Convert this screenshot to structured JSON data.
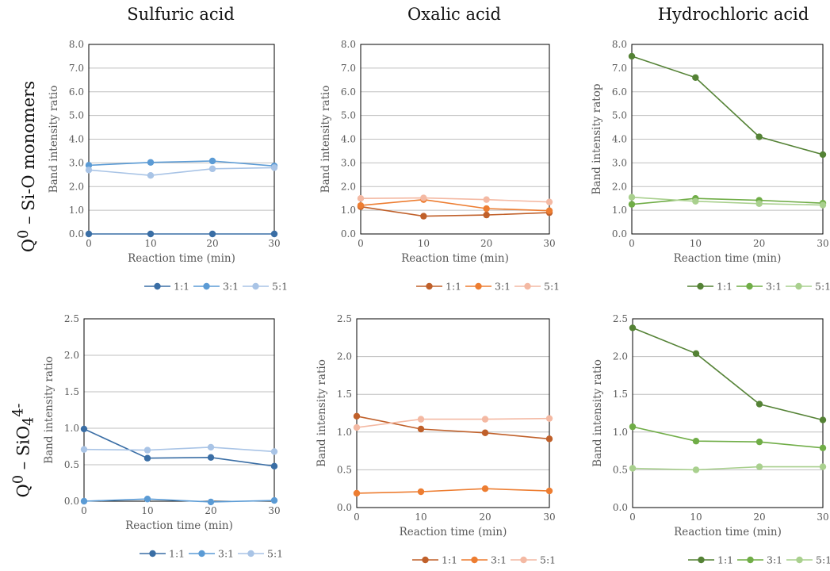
{
  "column_titles": [
    "Sulfuric acid",
    "Oxalic acid",
    "Hydrochloric acid"
  ],
  "row_labels": [
    {
      "main": "Q",
      "sup": "0",
      "rest": " – Si-O monomers"
    },
    {
      "main": "Q",
      "sup": "0",
      "rest": " – SiO",
      "sub": "4",
      "sup2": "4-"
    }
  ],
  "colors": {
    "sulfuric": [
      "#3a6ea5",
      "#5b9bd5",
      "#a9c4e6"
    ],
    "oxalic": [
      "#c0602a",
      "#ed7d31",
      "#f4b9a3"
    ],
    "hydrochloric": [
      "#548235",
      "#70ad47",
      "#a9d08e"
    ]
  },
  "chart_data": [
    {
      "type": "line",
      "xlabel": "Reaction time (min)",
      "ylabel": "Band intensity ratio",
      "x": [
        0,
        10,
        20,
        30
      ],
      "xticks": [
        "0",
        "10",
        "20",
        "30"
      ],
      "ylim": [
        0,
        8
      ],
      "yticks": [
        "0.0",
        "1.0",
        "2.0",
        "3.0",
        "4.0",
        "5.0",
        "6.0",
        "7.0",
        "8.0"
      ],
      "grid": true,
      "legend": "bottom",
      "series": [
        {
          "name": "1:1",
          "values": [
            0.0,
            0.0,
            0.0,
            0.0
          ]
        },
        {
          "name": "3:1",
          "values": [
            2.9,
            3.02,
            3.08,
            2.87
          ]
        },
        {
          "name": "5:1",
          "values": [
            2.7,
            2.47,
            2.75,
            2.8
          ]
        }
      ]
    },
    {
      "type": "line",
      "xlabel": "Reaction time (min)",
      "ylabel": "Band intensity ratio",
      "x": [
        0,
        10,
        20,
        30
      ],
      "xticks": [
        "0",
        "10",
        "20",
        "30"
      ],
      "ylim": [
        0,
        8
      ],
      "yticks": [
        "0.0",
        "1.0",
        "2.0",
        "3.0",
        "4.0",
        "5.0",
        "6.0",
        "7.0",
        "8.0"
      ],
      "grid": true,
      "legend": "bottom",
      "series": [
        {
          "name": "1:1",
          "values": [
            1.15,
            0.75,
            0.8,
            0.9
          ]
        },
        {
          "name": "3:1",
          "values": [
            1.2,
            1.45,
            1.07,
            0.98
          ]
        },
        {
          "name": "5:1",
          "values": [
            1.5,
            1.52,
            1.45,
            1.35
          ]
        }
      ]
    },
    {
      "type": "line",
      "xlabel": "Reaction time (min)",
      "ylabel": "Band intensity ratop",
      "x": [
        0,
        10,
        20,
        30
      ],
      "xticks": [
        "0",
        "10",
        "20",
        "30"
      ],
      "ylim": [
        0,
        8
      ],
      "yticks": [
        "0.0",
        "1.0",
        "2.0",
        "3.0",
        "4.0",
        "5.0",
        "6.0",
        "7.0",
        "8.0"
      ],
      "grid": true,
      "legend": "bottom",
      "series": [
        {
          "name": "1:1",
          "values": [
            7.5,
            6.6,
            4.1,
            3.35
          ]
        },
        {
          "name": "3:1",
          "values": [
            1.25,
            1.5,
            1.42,
            1.3
          ]
        },
        {
          "name": "5:1",
          "values": [
            1.55,
            1.38,
            1.28,
            1.22
          ]
        }
      ]
    },
    {
      "type": "line",
      "xlabel": "Reaction time (min)",
      "ylabel": "Band intensity ratio",
      "x": [
        0,
        10,
        20,
        30
      ],
      "xticks": [
        "0",
        "10",
        "20",
        "30"
      ],
      "ylim": [
        0,
        2.5
      ],
      "yticks": [
        "0.0",
        "0.5",
        "1.0",
        "1.5",
        "2.0",
        "2.5"
      ],
      "grid": true,
      "legend": "bottom",
      "series": [
        {
          "name": "1:1",
          "values": [
            0.99,
            0.59,
            0.6,
            0.48
          ]
        },
        {
          "name": "3:1",
          "values": [
            0.0,
            0.03,
            -0.01,
            0.01
          ]
        },
        {
          "name": "5:1",
          "values": [
            0.71,
            0.7,
            0.74,
            0.68
          ]
        }
      ]
    },
    {
      "type": "line",
      "xlabel": "Reaction time (min)",
      "ylabel": "Band intensity ratio",
      "x": [
        0,
        10,
        20,
        30
      ],
      "xticks": [
        "0",
        "10",
        "20",
        "30"
      ],
      "ylim": [
        0,
        2.5
      ],
      "yticks": [
        "0.0",
        "0.5",
        "1.0",
        "1.5",
        "2.0",
        "2.5"
      ],
      "grid": true,
      "legend": "bottom",
      "series": [
        {
          "name": "1:1",
          "values": [
            1.21,
            1.04,
            0.99,
            0.91
          ]
        },
        {
          "name": "3:1",
          "values": [
            0.19,
            0.21,
            0.25,
            0.22
          ]
        },
        {
          "name": "5:1",
          "values": [
            1.06,
            1.17,
            1.17,
            1.18
          ]
        }
      ]
    },
    {
      "type": "line",
      "xlabel": "Reaction time (min)",
      "ylabel": "Band intensity ratio",
      "x": [
        0,
        10,
        20,
        30
      ],
      "xticks": [
        "0",
        "10",
        "20",
        "30"
      ],
      "ylim": [
        0,
        2.5
      ],
      "yticks": [
        "0.0",
        "0.5",
        "1.0",
        "1.5",
        "2.0",
        "2.5"
      ],
      "grid": true,
      "legend": "bottom",
      "series": [
        {
          "name": "1:1",
          "values": [
            2.38,
            2.04,
            1.37,
            1.16
          ]
        },
        {
          "name": "3:1",
          "values": [
            1.07,
            0.88,
            0.87,
            0.79
          ]
        },
        {
          "name": "5:1",
          "values": [
            0.52,
            0.5,
            0.54,
            0.54
          ]
        }
      ]
    }
  ]
}
